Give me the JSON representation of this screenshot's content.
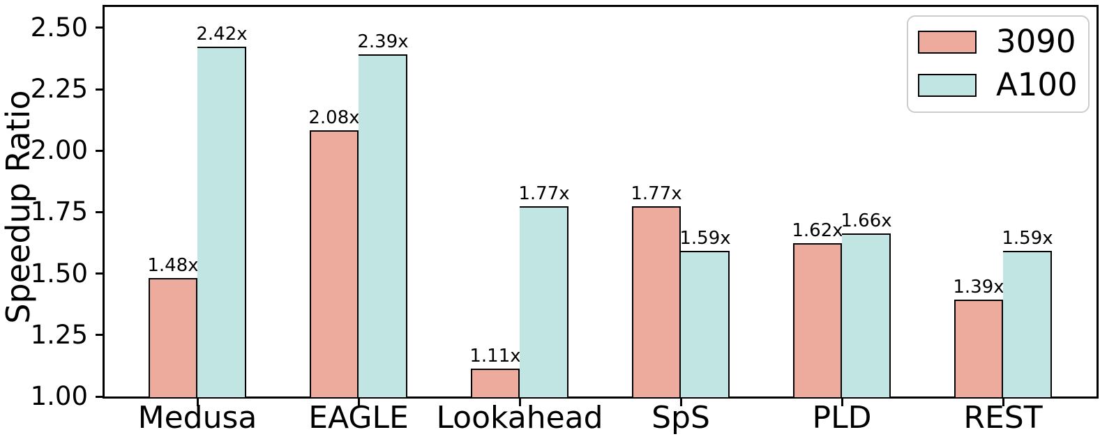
{
  "chart_data": {
    "type": "bar",
    "title": "",
    "categories": [
      "Medusa",
      "EAGLE",
      "Lookahead",
      "SpS",
      "PLD",
      "REST"
    ],
    "series": [
      {
        "name": "3090",
        "color": "#ECAB9C",
        "values": [
          1.48,
          2.08,
          1.11,
          1.77,
          1.62,
          1.39
        ],
        "bar_labels": [
          "1.48x",
          "2.08x",
          "1.11x",
          "1.77x",
          "1.62x",
          "1.39x"
        ]
      },
      {
        "name": "A100",
        "color": "#C1E5E3",
        "values": [
          2.42,
          2.39,
          1.77,
          1.59,
          1.66,
          1.59
        ],
        "bar_labels": [
          "2.42x",
          "2.39x",
          "1.77x",
          "1.59x",
          "1.66x",
          "1.59x"
        ]
      }
    ],
    "xlabel": "",
    "ylabel": "Speedup Ratio",
    "ylim": [
      1.0,
      2.585
    ],
    "yticks": [
      "1.00",
      "1.25",
      "1.50",
      "1.75",
      "2.00",
      "2.25",
      "2.50"
    ],
    "grid": false,
    "bar_edge_color": "#000000",
    "legend": {
      "position": "upper right",
      "edge_color": "#cccccc",
      "entries": [
        "3090",
        "A100"
      ]
    }
  }
}
